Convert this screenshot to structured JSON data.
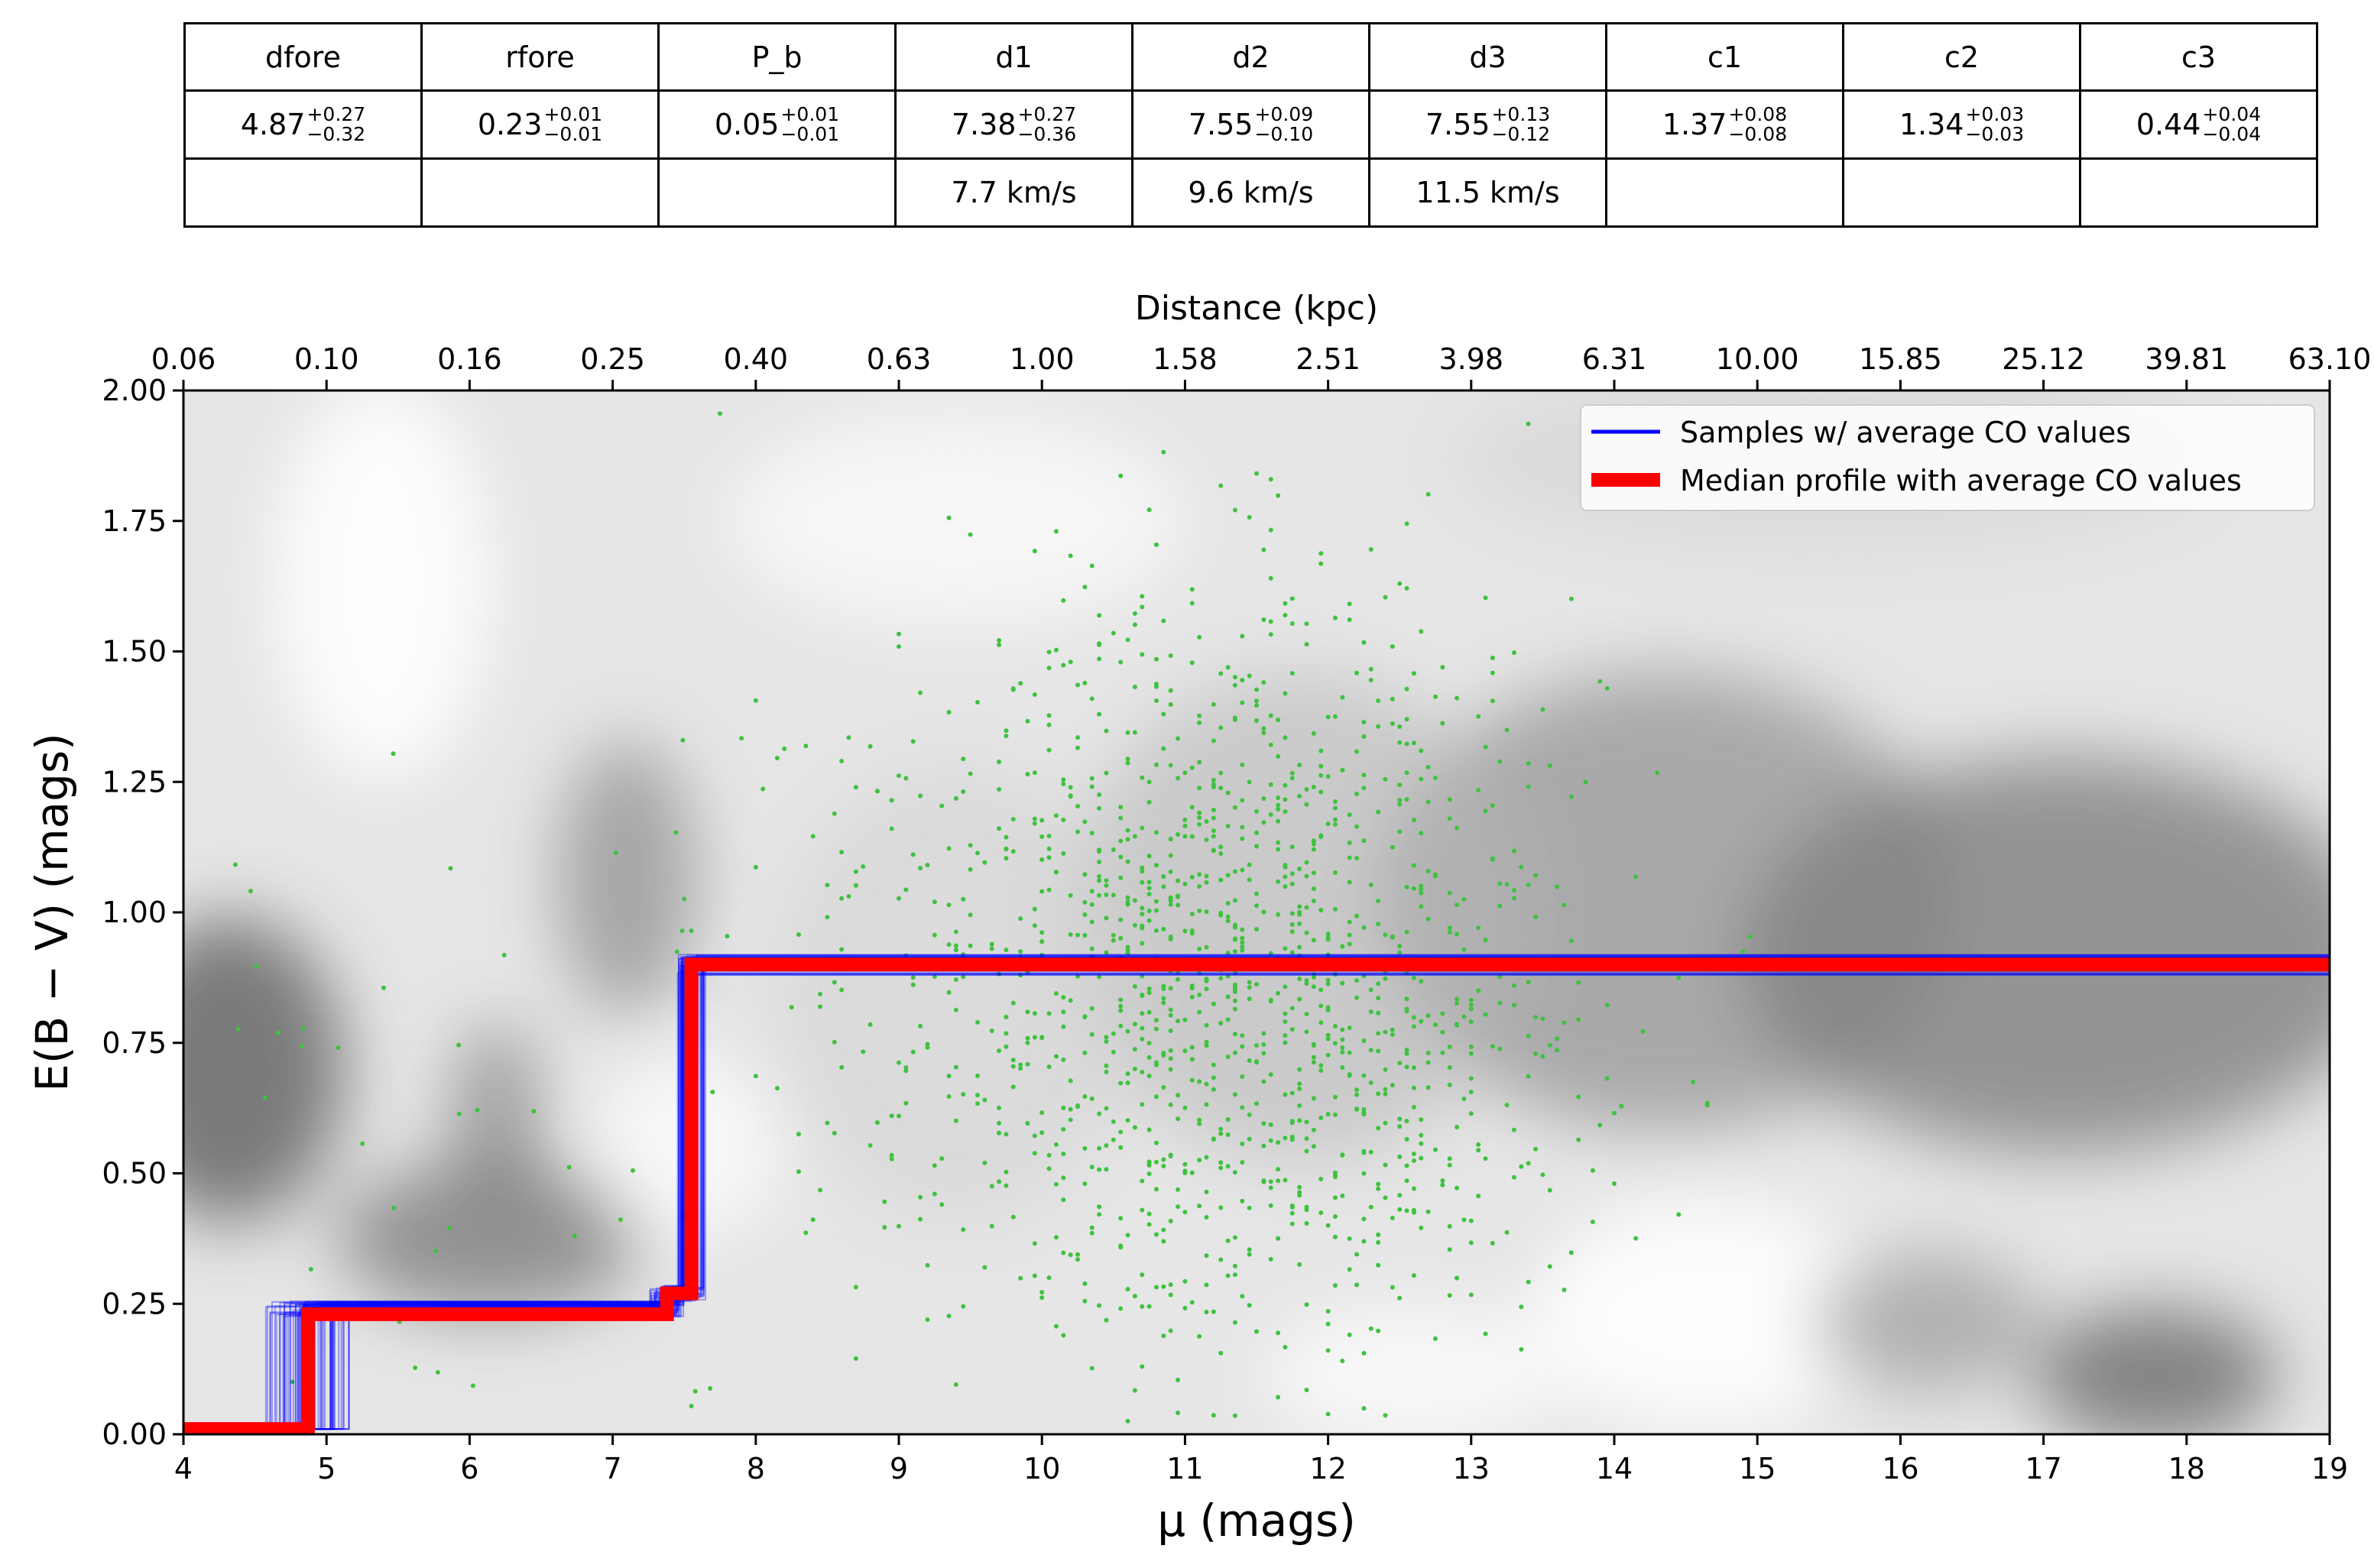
{
  "table": {
    "headers": [
      "dfore",
      "rfore",
      "P_b",
      "d1",
      "d2",
      "d3",
      "c1",
      "c2",
      "c3"
    ],
    "values": [
      {
        "val": "4.87",
        "plus": "+0.27",
        "minus": "−0.32"
      },
      {
        "val": "0.23",
        "plus": "+0.01",
        "minus": "−0.01"
      },
      {
        "val": "0.05",
        "plus": "+0.01",
        "minus": "−0.01"
      },
      {
        "val": "7.38",
        "plus": "+0.27",
        "minus": "−0.36"
      },
      {
        "val": "7.55",
        "plus": "+0.09",
        "minus": "−0.10"
      },
      {
        "val": "7.55",
        "plus": "+0.13",
        "minus": "−0.12"
      },
      {
        "val": "1.37",
        "plus": "+0.08",
        "minus": "−0.08"
      },
      {
        "val": "1.34",
        "plus": "+0.03",
        "minus": "−0.03"
      },
      {
        "val": "0.44",
        "plus": "+0.04",
        "minus": "−0.04"
      }
    ],
    "velocities": [
      "",
      "",
      "",
      "7.7 km/s",
      "9.6 km/s",
      "11.5 km/s",
      "",
      "",
      ""
    ]
  },
  "chart_data": {
    "type": "line",
    "xlabel": "μ (mags)",
    "ylabel": "E(B − V) (mags)",
    "top_xlabel": "Distance (kpc)",
    "xlim": [
      4,
      19
    ],
    "ylim": [
      0,
      2
    ],
    "xticks": [
      4,
      5,
      6,
      7,
      8,
      9,
      10,
      11,
      12,
      13,
      14,
      15,
      16,
      17,
      18,
      19
    ],
    "yticks": [
      "0.00",
      "0.25",
      "0.50",
      "0.75",
      "1.00",
      "1.25",
      "1.50",
      "1.75",
      "2.00"
    ],
    "top_ticks": [
      "0.06",
      "0.10",
      "0.16",
      "0.25",
      "0.40",
      "0.63",
      "1.00",
      "1.58",
      "2.51",
      "3.98",
      "6.31",
      "10.00",
      "15.85",
      "25.12",
      "39.81",
      "63.10"
    ],
    "legend_position": "top-right",
    "grid": false,
    "series": [
      {
        "name": "Samples  w/ average CO values",
        "color": "#0000ff",
        "x": [
          4,
          4.87,
          4.87,
          7.38,
          7.38,
          7.55,
          7.55,
          19
        ],
        "y": [
          0.01,
          0.01,
          0.24,
          0.24,
          0.27,
          0.27,
          0.9,
          0.9
        ]
      },
      {
        "name": "Median profile with average CO values",
        "color": "#ff0000",
        "x": [
          4,
          4.87,
          4.87,
          7.38,
          7.38,
          7.55,
          7.55,
          19
        ],
        "y": [
          0.01,
          0.01,
          0.23,
          0.23,
          0.27,
          0.27,
          0.9,
          0.9
        ]
      }
    ],
    "scatter_color": "#3fc23f",
    "background": "grayscale stellar density"
  }
}
